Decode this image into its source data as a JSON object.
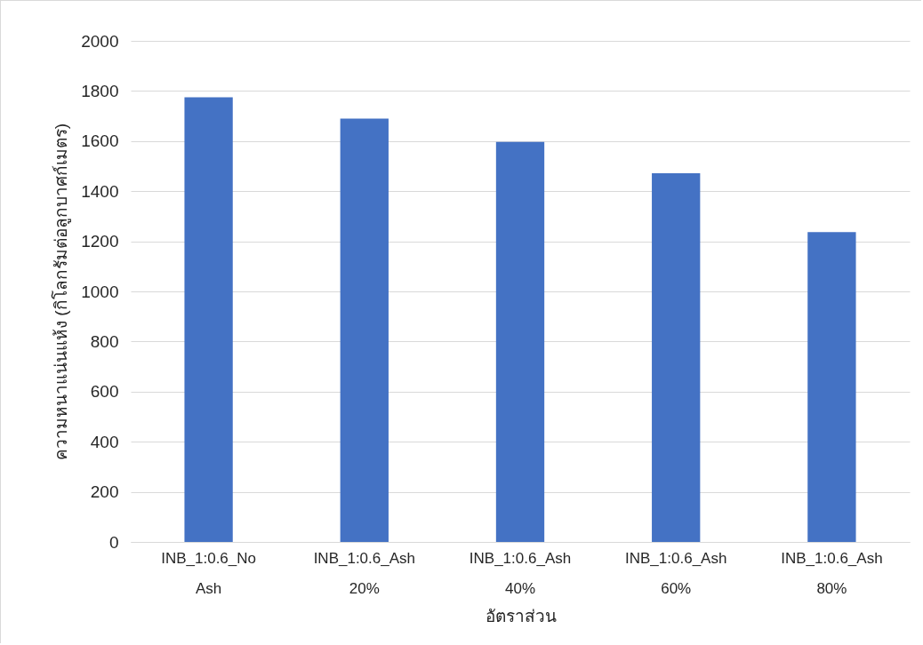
{
  "chart_data": {
    "type": "bar",
    "xlabel": "อัตราส่วน",
    "ylabel": "ความหนาแน่นแห้ง (กิโลกรัมต่อลูกบาศก์เมตร)",
    "categories": [
      "INB_1:0.6_No Ash",
      "INB_1:0.6_Ash 20%",
      "INB_1:0.6_Ash 40%",
      "INB_1:0.6_Ash 60%",
      "INB_1:0.6_Ash 80%"
    ],
    "values": [
      1775,
      1690,
      1597,
      1472,
      1237
    ],
    "color": "#4472c4",
    "ylim": [
      0,
      2000
    ],
    "yticks": [
      0,
      200,
      400,
      600,
      800,
      1000,
      1200,
      1400,
      1600,
      1800,
      2000
    ],
    "grid": "y"
  }
}
